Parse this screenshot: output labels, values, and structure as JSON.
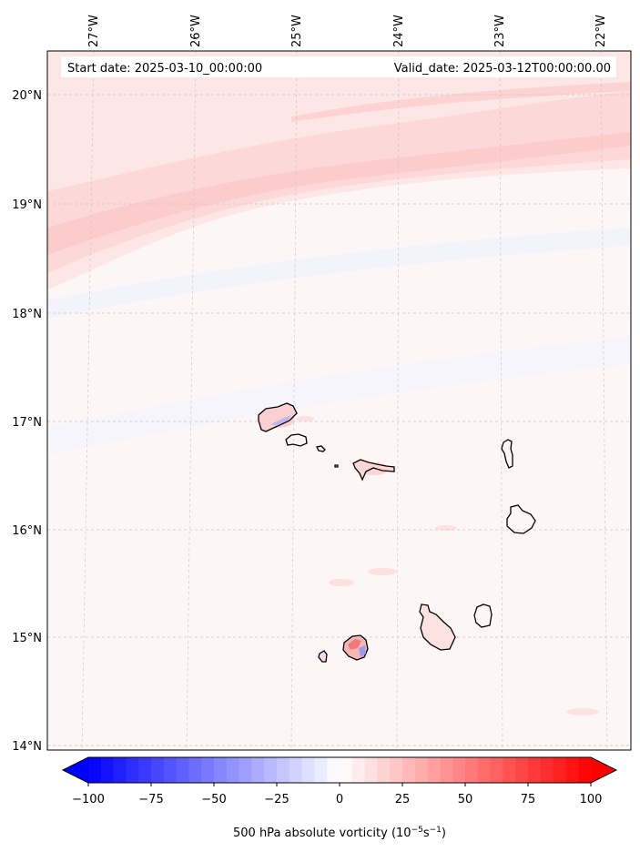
{
  "header": {
    "start_date": "Start date: 2025-03-10_00:00:00",
    "valid_date": "Valid_date: 2025-03-12T00:00:00.00"
  },
  "map": {
    "lon_labels": [
      "27°W",
      "26°W",
      "25°W",
      "24°W",
      "23°W",
      "22°W"
    ],
    "lat_labels": [
      "20°N",
      "19°N",
      "18°N",
      "17°N",
      "16°N",
      "15°N",
      "14°N"
    ],
    "island_outline_color": "#000000",
    "gridline_color": "#c8c8c8"
  },
  "colorbar": {
    "ticks": [
      "−100",
      "−75",
      "−50",
      "−25",
      "0",
      "25",
      "50",
      "75",
      "100"
    ],
    "label_prefix": "500 hPa absolute vorticity (10",
    "label_exp1": "−5",
    "label_mid": "s",
    "label_exp2": "−1",
    "label_suffix": ")",
    "min_color": "#0000ff",
    "mid_color": "#ffffff",
    "max_color": "#ff0000"
  }
}
